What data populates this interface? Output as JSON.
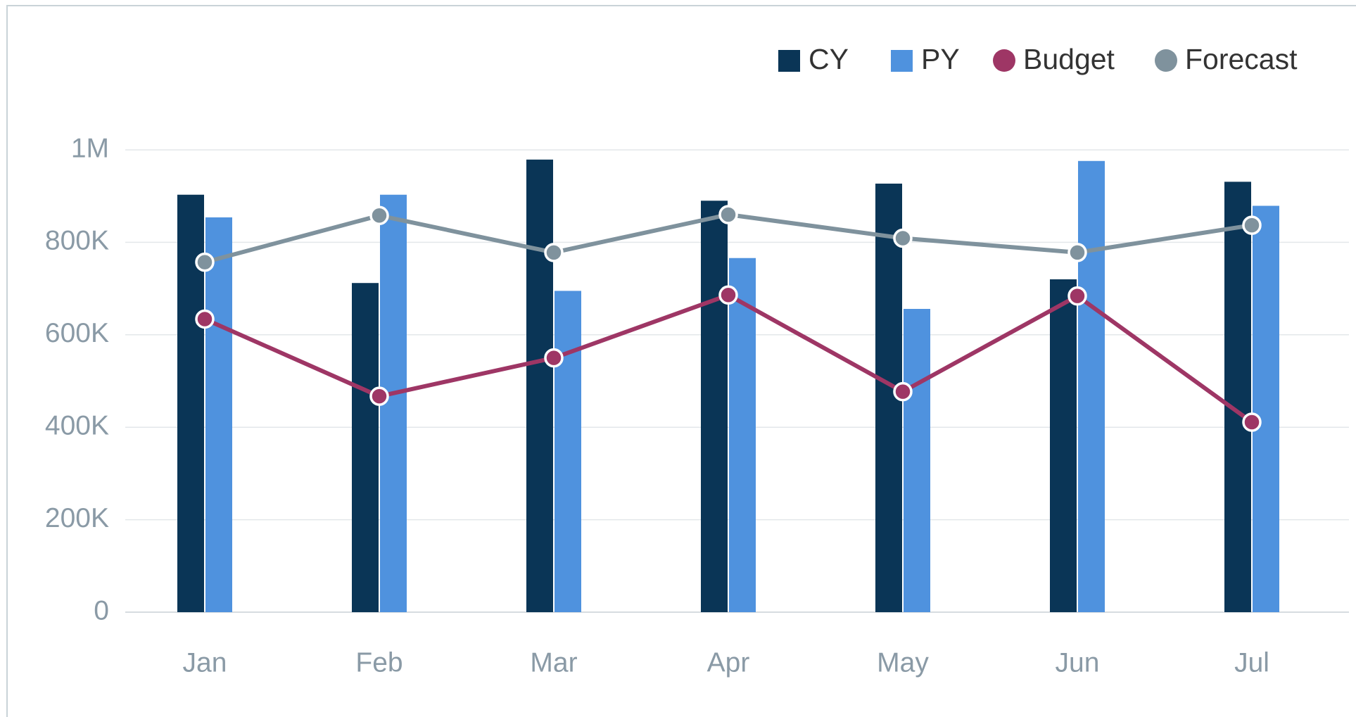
{
  "chart_data": {
    "type": "bar",
    "categories": [
      "Jan",
      "Feb",
      "Mar",
      "Apr",
      "May",
      "Jun",
      "Jul"
    ],
    "series": [
      {
        "name": "CY",
        "type": "bar",
        "color": "#0a3556",
        "values": [
          903000,
          712000,
          979000,
          890000,
          927000,
          720000,
          931000
        ]
      },
      {
        "name": "PY",
        "type": "bar",
        "color": "#4f92de",
        "values": [
          854000,
          903000,
          695000,
          766000,
          656000,
          976000,
          879000
        ]
      },
      {
        "name": "Budget",
        "type": "line",
        "color": "#9e3665",
        "values": [
          634000,
          467000,
          550000,
          686000,
          477000,
          684000,
          411000
        ]
      },
      {
        "name": "Forecast",
        "type": "line",
        "color": "#7f929d",
        "values": [
          757000,
          858000,
          778000,
          860000,
          809000,
          778000,
          837000
        ]
      }
    ],
    "ylim": [
      0,
      1000000
    ],
    "yticks": [
      0,
      {
        "value": 200000,
        "label": "200K"
      },
      {
        "value": 400000,
        "label": "400K"
      },
      {
        "value": 600000,
        "label": "600K"
      },
      {
        "value": 800000,
        "label": "800K"
      },
      {
        "value": 1000000,
        "label": "1M"
      }
    ],
    "grid": true,
    "legend": "top-right"
  }
}
